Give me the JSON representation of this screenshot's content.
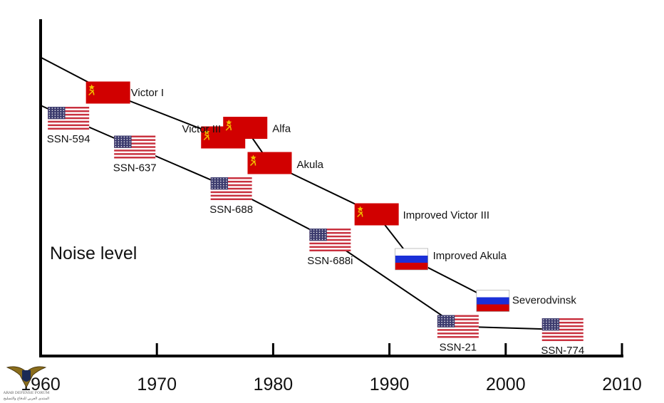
{
  "chart_data": {
    "type": "line",
    "title": "",
    "xlabel": "",
    "ylabel": "Noise level",
    "xlim": [
      1960,
      2010
    ],
    "ylim": [
      0,
      100
    ],
    "ticks": [
      "1960",
      "1970",
      "1980",
      "1990",
      "2000",
      "2010"
    ],
    "grid": false,
    "series": [
      {
        "points": [
          {
            "x": 1960.0,
            "y": 91,
            "label": "",
            "flag": "none"
          },
          {
            "x": 1965.8,
            "y": 80,
            "label": "Victor I",
            "flag": "ussr"
          },
          {
            "x": 1975.7,
            "y": 66,
            "label": "Victor III",
            "flag": "ussr"
          },
          {
            "x": 1977.6,
            "y": 69,
            "label": "Alfa",
            "flag": "ussr"
          },
          {
            "x": 1979.7,
            "y": 58,
            "label": "Akula",
            "flag": "ussr"
          },
          {
            "x": 1988.9,
            "y": 42,
            "label": "Improved Victor III",
            "flag": "ussr"
          },
          {
            "x": 1991.9,
            "y": 28,
            "label": "Improved Akula",
            "flag": "russia"
          },
          {
            "x": 1998.9,
            "y": 15,
            "label": "Severodvinsk",
            "flag": "russia"
          }
        ]
      },
      {
        "points": [
          {
            "x": 1960.0,
            "y": 76,
            "label": "",
            "flag": "none"
          },
          {
            "x": 1962.4,
            "y": 72,
            "label": "SSN-594",
            "flag": "usa"
          },
          {
            "x": 1968.1,
            "y": 63,
            "label": "SSN-637",
            "flag": "usa"
          },
          {
            "x": 1976.4,
            "y": 50,
            "label": "SSN-688",
            "flag": "usa"
          },
          {
            "x": 1984.9,
            "y": 34,
            "label": "SSN-688i",
            "flag": "usa"
          },
          {
            "x": 1995.9,
            "y": 7,
            "label": "SSN-21",
            "flag": "usa"
          },
          {
            "x": 2004.9,
            "y": 6,
            "label": "SSN-774",
            "flag": "usa"
          }
        ]
      }
    ]
  },
  "watermark": {
    "line1": "ARAB DEFENSE FORUM",
    "line2": "المنتدى العربي للدفاع والتسليح"
  },
  "colors": {
    "ussr_red": "#d10000",
    "emblem_gold": "#f2c200",
    "russia_blue": "#1a2fd8",
    "usa_red": "#c8303e",
    "usa_blue": "#3c3b6e",
    "line": "#000000"
  }
}
